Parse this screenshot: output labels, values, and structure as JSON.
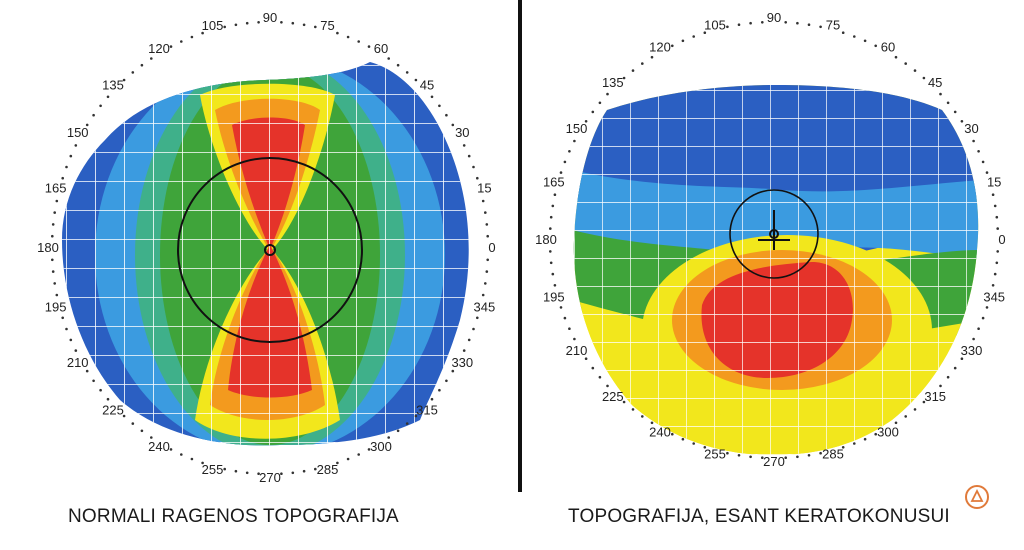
{
  "maps": [
    {
      "id": "normal",
      "caption": "NORMALI RAGENOS TOPOGRAFIJA",
      "degree_labels": [
        "0",
        "15",
        "30",
        "45",
        "60",
        "75",
        "90",
        "105",
        "120",
        "135",
        "150",
        "165",
        "180",
        "195",
        "210",
        "225",
        "240",
        "255",
        "270",
        "285",
        "300",
        "315",
        "330",
        "345"
      ]
    },
    {
      "id": "keratoconus",
      "caption": "TOPOGRAFIJA, ESANT KERATOKONUSUI",
      "degree_labels": [
        "0",
        "15",
        "30",
        "45",
        "60",
        "75",
        "90",
        "105",
        "120",
        "135",
        "150",
        "165",
        "180",
        "195",
        "210",
        "225",
        "240",
        "255",
        "270",
        "285",
        "300",
        "315",
        "330",
        "345"
      ]
    }
  ],
  "colors": {
    "blue": "#2b5fc2",
    "light_blue": "#3b9be0",
    "cyan_green": "#3fb08a",
    "green": "#3fa43a",
    "yellow": "#f2e71c",
    "orange": "#f39a1e",
    "red": "#e5332a"
  },
  "logo": {
    "icon": "clinic-logo-icon"
  }
}
